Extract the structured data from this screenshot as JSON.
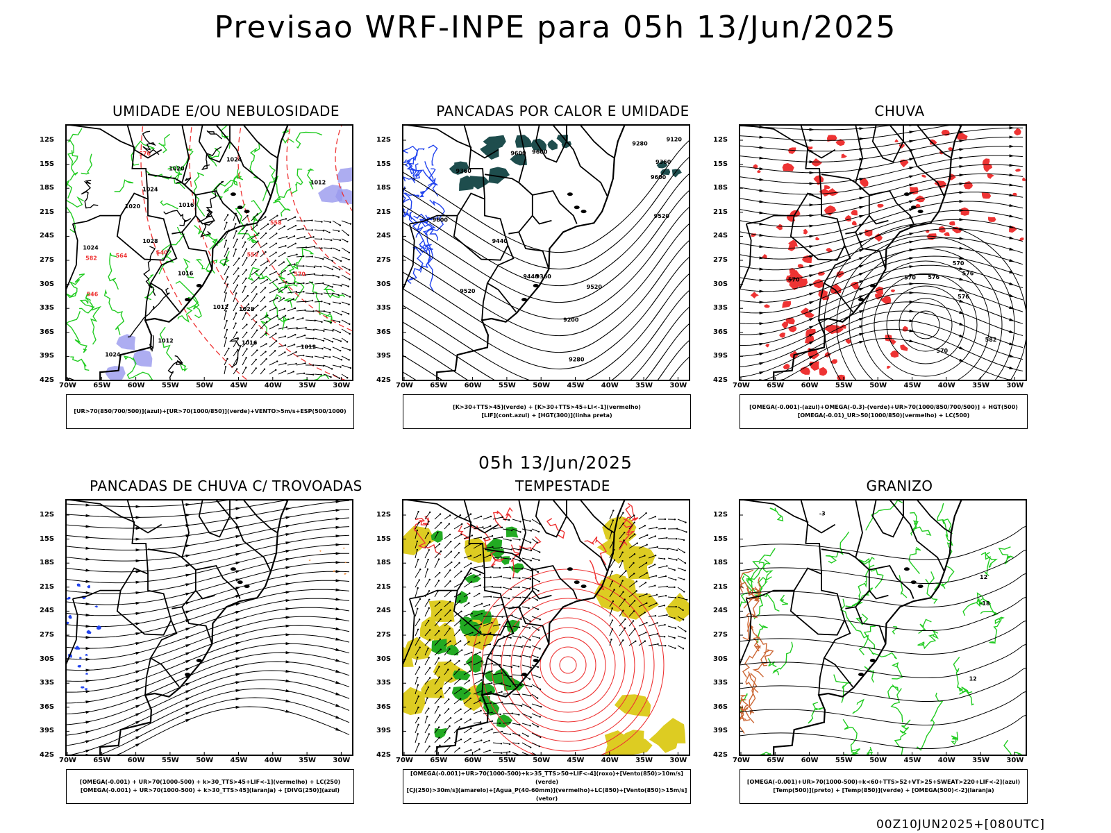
{
  "title": "Previsao WRF-INPE  para 05h 13/Jun/2025",
  "mid_title": "05h 13/Jun/2025",
  "footer_run": "00Z10JUN2025+[080UTC]",
  "lat_ticks": [
    "12S",
    "15S",
    "18S",
    "21S",
    "24S",
    "27S",
    "30S",
    "33S",
    "36S",
    "39S",
    "42S"
  ],
  "lon_ticks": [
    "70W",
    "65W",
    "60W",
    "55W",
    "50W",
    "45W",
    "40W",
    "35W",
    "30W"
  ],
  "panels": [
    {
      "id": "umidade",
      "title": "UMIDADE E/OU NEBULOSIDADE",
      "legend": [
        "[UR>70(850/700/500)](azul)+[UR>70(1000/850)](verde)+VENTO>5m/s+ESP(500/1000)"
      ],
      "contour_labels": [
        "1012",
        "1012",
        "1012",
        "1016",
        "1020",
        "1024",
        "1020",
        "1024",
        "1016",
        "1012",
        "1024",
        "1028",
        "1028",
        "1024",
        "1016",
        "570",
        "564",
        "558",
        "552",
        "546",
        "540",
        "582",
        "576"
      ],
      "colors": {
        "blue": "#9999ee",
        "green": "#22cc22",
        "red": "#ee3333"
      }
    },
    {
      "id": "pancadas-calor",
      "title": "PANCADAS POR CALOR E UMIDADE",
      "legend": [
        "[K>30+TTS>45](verde) + [K>30+TTS>45+LI<-1](vermelho)",
        "[LIF](cont.azul) + [HGT(300)](linha preta)"
      ],
      "contour_labels": [
        "9600",
        "9600",
        "9520",
        "9600",
        "9600",
        "9520",
        "9520",
        "9440",
        "9360",
        "9440",
        "9360",
        "9280",
        "9200",
        "9120",
        "9360",
        "9280"
      ],
      "colors": {
        "teal": "#1e4d4d",
        "blue": "#2244ee"
      }
    },
    {
      "id": "chuva",
      "title": "CHUVA",
      "legend": [
        "[OMEGA(-0.001)-(azul)+OMEGA(-0.3)-(verde)+UR>70(1000/850/700/500)] + HGT(500)",
        "[OMEGA(-0.01)_UR>50(1000/850)(vermelho) + LC(500)"
      ],
      "contour_labels": [
        "582",
        "576",
        "576",
        "576",
        "570",
        "570",
        "570",
        "570"
      ],
      "colors": {
        "red": "#ee3333"
      }
    },
    {
      "id": "trovoadas",
      "title": "PANCADAS DE CHUVA C/ TROVOADAS",
      "legend": [
        "[OMEGA(-0.001) + UR>70(1000-500) + k>30_TTS>45+LIF<-1](vermelho) + LC(250)",
        "[OMEGA(-0.001) + UR>70(1000-500) + k>30_TTS>45](laranja) + [DIVG(250)](azul)"
      ],
      "contour_labels": [],
      "colors": {
        "blue": "#2244ee",
        "orange": "#ee8833"
      }
    },
    {
      "id": "tempestade",
      "title": "TEMPESTADE",
      "legend": [
        "[OMEGA(-0.001)+UR>70(1000-500)+k>35_TTS>50+LIF<-4](roxo)+[Vento(850)>10m/s](verde)",
        "[CJ(250)>30m/s](amarelo)+[Agua_P(40-60mm)](vermelho)+LC(850)+[Vento(850)>15m/s](vetor)"
      ],
      "contour_labels": [],
      "colors": {
        "yellow": "#ddcc22",
        "green": "#22aa22",
        "red": "#ee3333"
      }
    },
    {
      "id": "granizo",
      "title": "GRANIZO",
      "legend": [
        "[OMEGA(-0.001)+UR>70(1000-500)+k<60+TTS>52+VT>25+SWEAT>220+LIF<-2](azul)",
        "[Temp(500)](preto) + [Temp(850)](verde) + [OMEGA(500)<-2](laranja)"
      ],
      "contour_labels": [
        "12",
        "12",
        "-18",
        "-3"
      ],
      "colors": {
        "green": "#22cc22",
        "orange": "#cc6633"
      }
    }
  ]
}
